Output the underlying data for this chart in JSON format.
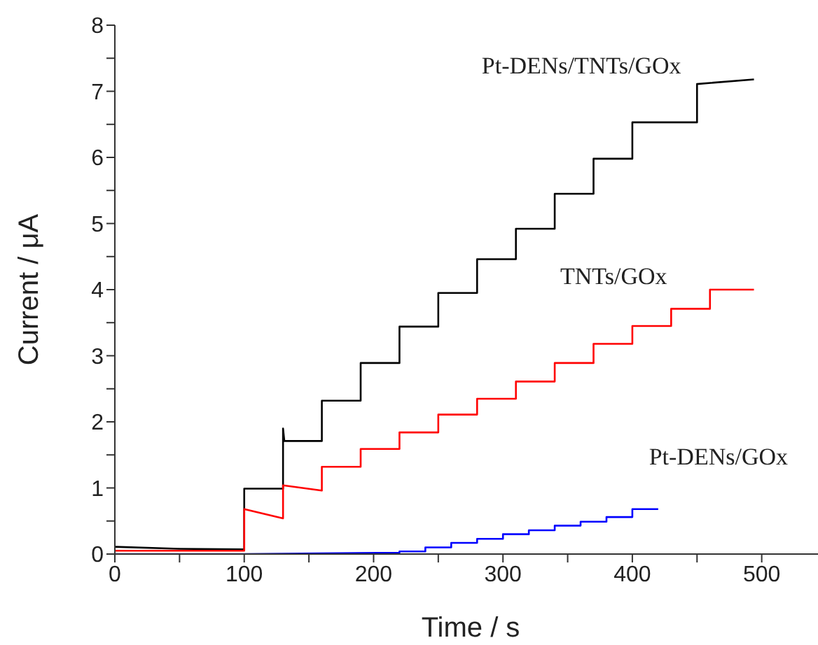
{
  "chart_data": {
    "type": "line",
    "xlabel": "Time / s",
    "ylabel": "Current / μA",
    "xlim": [
      0,
      550
    ],
    "ylim": [
      0,
      8
    ],
    "xticks": [
      0,
      {
        "value": 50,
        "label": null
      },
      100,
      {
        "value": 150,
        "label": null
      },
      200,
      {
        "value": 250,
        "label": null
      },
      300,
      {
        "value": 350,
        "label": null
      },
      400,
      {
        "value": 450,
        "label": null
      },
      500
    ],
    "yticks": [
      0,
      {
        "value": 0.5,
        "label": null
      },
      1,
      {
        "value": 1.5,
        "label": null
      },
      2,
      {
        "value": 2.5,
        "label": null
      },
      3,
      {
        "value": 3.5,
        "label": null
      },
      4,
      {
        "value": 4.5,
        "label": null
      },
      5,
      {
        "value": 5.5,
        "label": null
      },
      6,
      {
        "value": 6.5,
        "label": null
      },
      7,
      {
        "value": 7.5,
        "label": null
      },
      8
    ],
    "grid": false,
    "legend": false,
    "marker": "none",
    "line_style": "solid",
    "series": [
      {
        "name": "Pt-DENs/TNTs/GOx",
        "color": "#000000",
        "x": [
          0,
          50,
          100,
          100,
          130,
          130,
          131,
          160,
          160,
          190,
          190,
          220,
          220,
          250,
          250,
          280,
          280,
          310,
          310,
          340,
          340,
          370,
          370,
          400,
          400,
          450,
          450,
          494
        ],
        "values": [
          0.11,
          0.08,
          0.07,
          0.99,
          0.99,
          1.9,
          1.71,
          1.71,
          2.32,
          2.32,
          2.89,
          2.89,
          3.44,
          3.44,
          3.95,
          3.95,
          4.46,
          4.46,
          4.92,
          4.92,
          5.45,
          5.45,
          5.98,
          5.98,
          6.53,
          6.53,
          7.11,
          7.18
        ]
      },
      {
        "name": "TNTs/GOx",
        "color": "#ff0000",
        "x": [
          0,
          100,
          100,
          130,
          130,
          160,
          160,
          190,
          190,
          220,
          220,
          250,
          250,
          280,
          280,
          310,
          310,
          340,
          340,
          370,
          370,
          400,
          400,
          430,
          430,
          460,
          460,
          494
        ],
        "values": [
          0.05,
          0.05,
          0.68,
          0.54,
          1.04,
          0.96,
          1.32,
          1.32,
          1.59,
          1.59,
          1.84,
          1.84,
          2.11,
          2.11,
          2.35,
          2.35,
          2.61,
          2.61,
          2.89,
          2.89,
          3.18,
          3.18,
          3.45,
          3.45,
          3.71,
          3.71,
          4.0,
          4.0
        ]
      },
      {
        "name": "Pt-DENs/GOx",
        "color": "#0000ff",
        "x": [
          0,
          100,
          220,
          220,
          240,
          240,
          260,
          260,
          280,
          280,
          300,
          300,
          320,
          320,
          340,
          340,
          360,
          360,
          380,
          380,
          400,
          400,
          420
        ],
        "values": [
          0,
          0,
          0.02,
          0.04,
          0.04,
          0.1,
          0.1,
          0.17,
          0.17,
          0.23,
          0.23,
          0.3,
          0.3,
          0.36,
          0.36,
          0.43,
          0.43,
          0.49,
          0.49,
          0.56,
          0.56,
          0.68,
          0.68
        ]
      }
    ]
  }
}
